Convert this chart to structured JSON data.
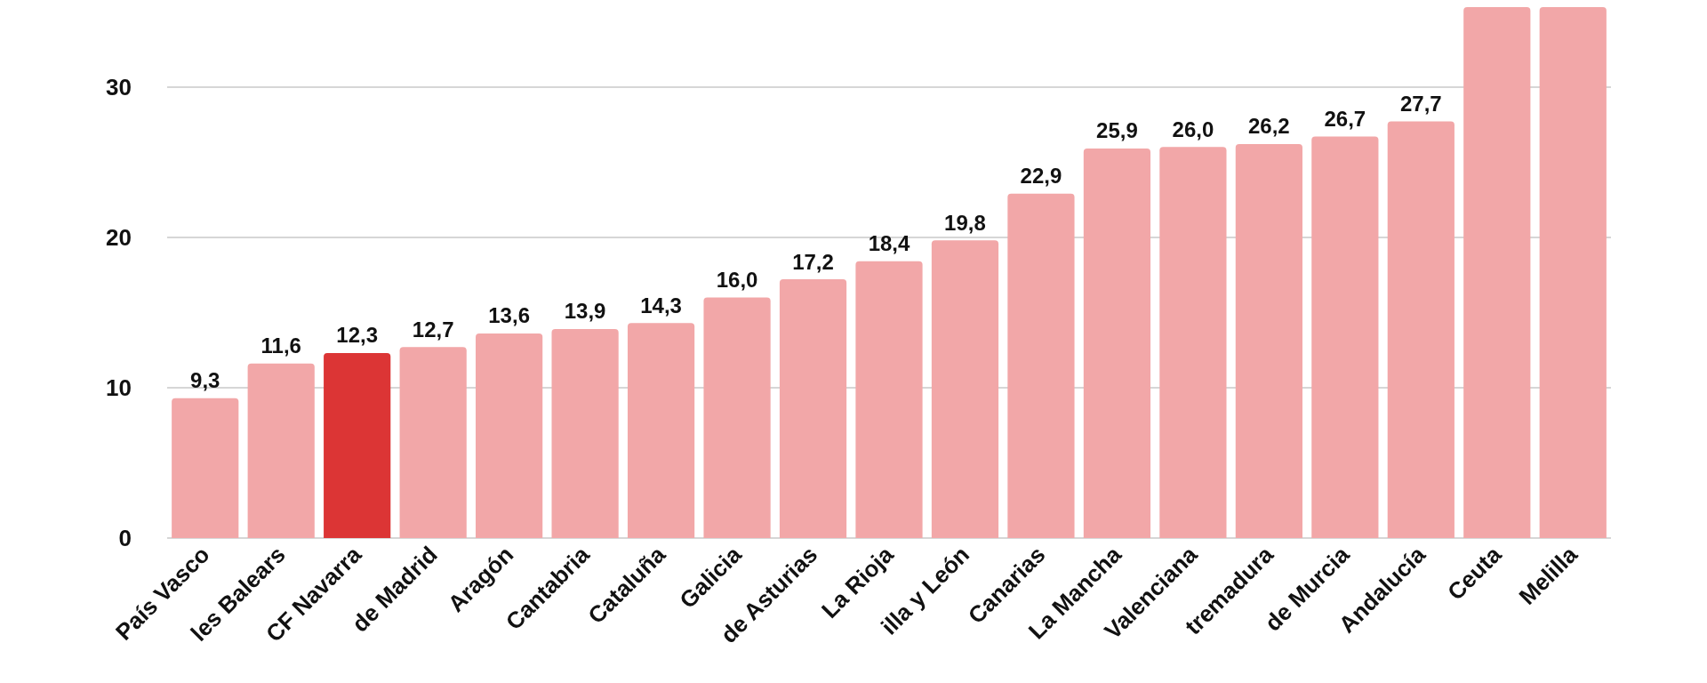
{
  "chart_data": {
    "type": "bar",
    "categories": [
      "País Vasco",
      "les Balears",
      "CF Navarra",
      "de Madrid",
      "Aragón",
      "Cantabria",
      "Cataluña",
      "Galicia",
      "de Asturias",
      "La Rioja",
      "illa y León",
      "Canarias",
      "La Mancha",
      "Valenciana",
      "tremadura",
      "de Murcia",
      "Andalucía",
      "Ceuta",
      "Melilla"
    ],
    "values": [
      9.3,
      11.6,
      12.3,
      12.7,
      13.6,
      13.9,
      14.3,
      16.0,
      17.2,
      18.4,
      19.8,
      22.9,
      25.9,
      26.0,
      26.2,
      26.7,
      27.7,
      35.3,
      35.3
    ],
    "value_labels": [
      "9,3",
      "11,6",
      "12,3",
      "12,7",
      "13,6",
      "13,9",
      "14,3",
      "16,0",
      "17,2",
      "18,4",
      "19,8",
      "22,9",
      "25,9",
      "26,0",
      "26,2",
      "26,7",
      "27,7",
      null,
      null
    ],
    "colors": [
      "#f2a7a8",
      "#f2a7a8",
      "#dc3535",
      "#f2a7a8",
      "#f2a7a8",
      "#f2a7a8",
      "#f2a7a8",
      "#f2a7a8",
      "#f2a7a8",
      "#f2a7a8",
      "#f2a7a8",
      "#f2a7a8",
      "#f2a7a8",
      "#f2a7a8",
      "#f2a7a8",
      "#f2a7a8",
      "#f2a7a8",
      "#f2a7a8",
      "#f2a7a8"
    ],
    "ylim": [
      0,
      35.3
    ],
    "yticks": [
      0,
      10,
      20,
      30
    ],
    "grid": "y"
  }
}
